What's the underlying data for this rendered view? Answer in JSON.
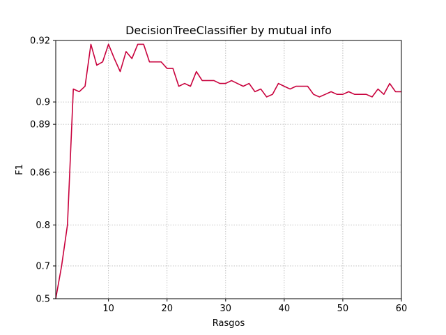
{
  "chart_data": {
    "type": "line",
    "title": "DecisionTreeClassifier by mutual info",
    "xlabel": "Rasgos",
    "ylabel": "F1",
    "xlim": [
      1,
      60
    ],
    "ylim": [
      0.5,
      0.92
    ],
    "xticks": [
      10,
      20,
      30,
      40,
      50,
      60
    ],
    "yticks": [
      0.5,
      0.7,
      0.8,
      0.86,
      0.89,
      0.9,
      0.92
    ],
    "ytick_labels": [
      "0.5",
      "0.7",
      "0.8",
      "0.86",
      "0.89",
      "0.9",
      "0.92"
    ],
    "grid": true,
    "line_color": "#c8003c",
    "series": [
      {
        "x": [
          1,
          2,
          3,
          4,
          5,
          6,
          7,
          8,
          9,
          10,
          11,
          12,
          13,
          14,
          15,
          16,
          17,
          18,
          19,
          20,
          21,
          22,
          23,
          24,
          25,
          26,
          27,
          28,
          29,
          30,
          31,
          32,
          33,
          34,
          35,
          36,
          37,
          38,
          39,
          40,
          41,
          42,
          43,
          44,
          45,
          46,
          47,
          48,
          49,
          50,
          51,
          52,
          53,
          54,
          55,
          56,
          57,
          58,
          59,
          60
        ],
        "values": [
          0.5,
          0.7,
          0.8,
          0.905,
          0.904,
          0.906,
          0.919,
          0.913,
          0.914,
          0.919,
          0.915,
          0.911,
          0.917,
          0.915,
          0.919,
          0.919,
          0.914,
          0.914,
          0.914,
          0.912,
          0.912,
          0.906,
          0.907,
          0.906,
          0.911,
          0.908,
          0.908,
          0.908,
          0.907,
          0.907,
          0.908,
          0.907,
          0.906,
          0.907,
          0.904,
          0.905,
          0.902,
          0.903,
          0.907,
          0.906,
          0.905,
          0.906,
          0.906,
          0.906,
          0.903,
          0.902,
          0.903,
          0.904,
          0.903,
          0.903,
          0.904,
          0.903,
          0.903,
          0.903,
          0.902,
          0.905,
          0.903,
          0.907,
          0.904,
          0.904
        ]
      }
    ]
  }
}
